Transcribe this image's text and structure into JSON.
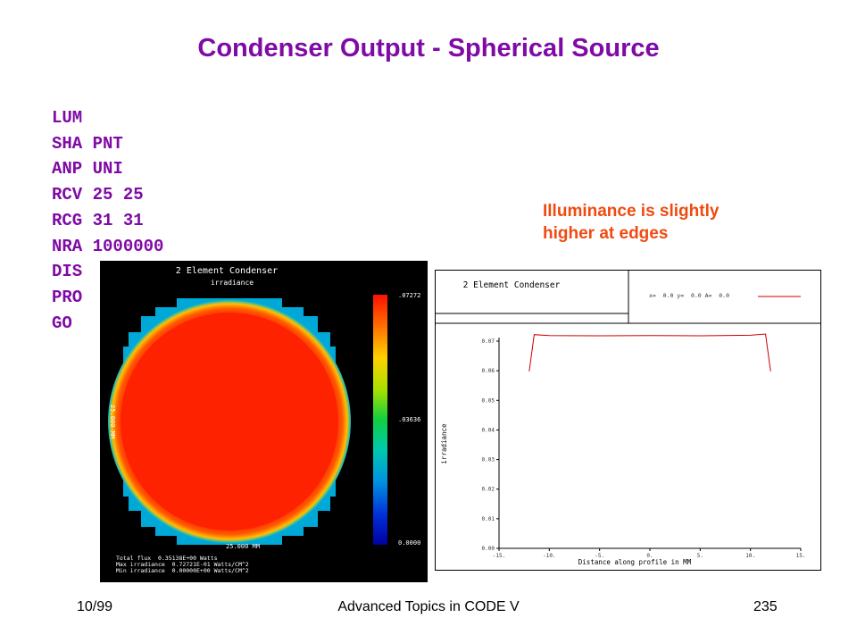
{
  "title": "Condenser Output - Spherical Source",
  "commands": [
    "LUM",
    "SHA PNT",
    "ANP UNI",
    "RCV 25 25",
    "RCG 31 31",
    "NRA 1000000",
    "DIS",
    "PRO",
    "GO"
  ],
  "note": [
    "Illuminance is slightly",
    "higher at edges"
  ],
  "footer": {
    "left": "10/99",
    "center": "Advanced Topics in CODE V",
    "right": "235"
  },
  "irradiance_map": {
    "title": "2 Element Condenser",
    "subtitle": "irradiance",
    "scale_labels": {
      "top": ".07272",
      "mid": ".03636",
      "bottom": "0.0000"
    },
    "x_dim": "25.000 MM",
    "y_dim": "25.000 MM",
    "stats": [
      "Total flux  0.35138E+00 Watts",
      "Max irradiance  0.72721E-01 Watts/CM^2",
      "Min irradiance  0.00000E+00 Watts/CM^2"
    ],
    "colors": {
      "fill": "#ff2200",
      "background": "#000000"
    }
  },
  "profile_plot": {
    "title": "2 Element Condenser",
    "legend": "x=  0.0 y=  0.0 A=  0.0",
    "line_color": "#cc0000"
  },
  "chart_data": {
    "type": "line",
    "title": "",
    "xlabel": "Distance along profile in MM",
    "ylabel": "irradiance",
    "xlim": [
      -15,
      15
    ],
    "ylim": [
      0,
      0.07
    ],
    "x_ticks": [
      "-15.",
      "-10.",
      "-5.",
      "0.",
      "5.",
      "10.",
      "15."
    ],
    "y_ticks": [
      "0.00",
      "0.01",
      "0.02",
      "0.03",
      "0.04",
      "0.05",
      "0.06",
      "0.07"
    ],
    "grid": false,
    "series": [
      {
        "x": [
          -12.0,
          -11.5,
          -10.0,
          -5.0,
          0.0,
          5.0,
          10.0,
          11.5,
          12.0
        ],
        "values": [
          0.0598,
          0.0722,
          0.0719,
          0.0718,
          0.0719,
          0.0718,
          0.072,
          0.0724,
          0.0598
        ]
      }
    ]
  }
}
